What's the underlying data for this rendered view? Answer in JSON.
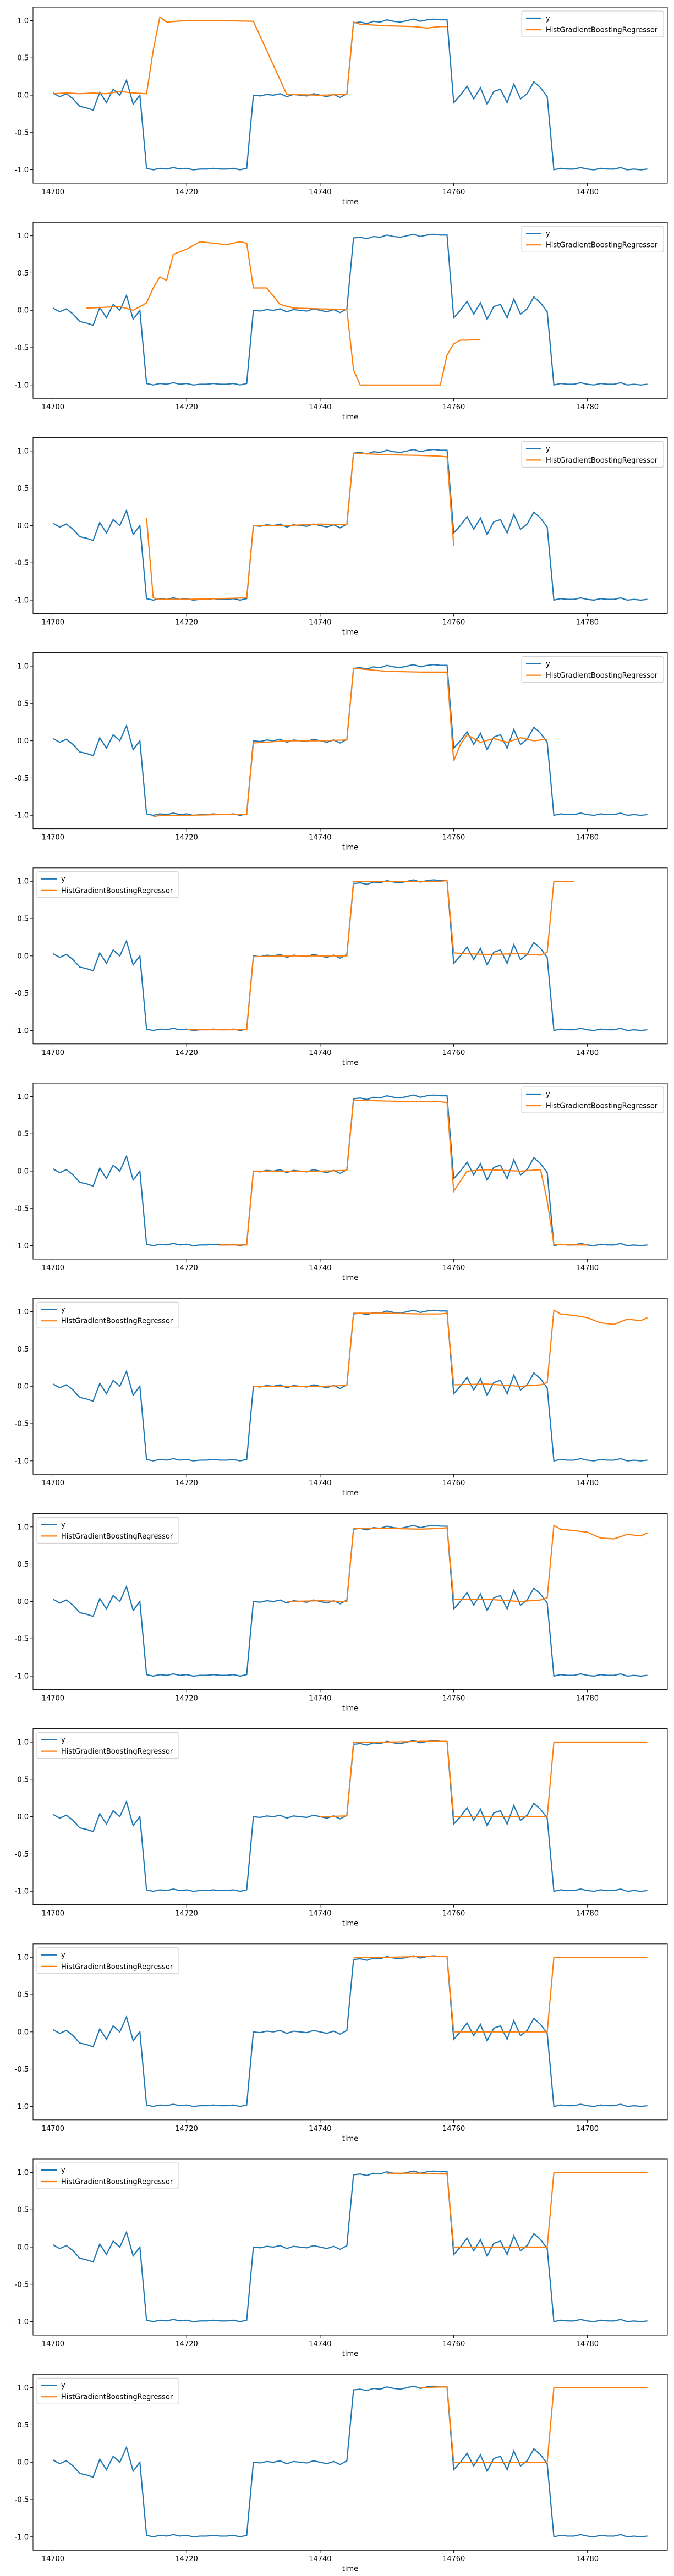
{
  "figure": {
    "xlabel": "time",
    "series_names": [
      "y",
      "HistGradientBoostingRegressor"
    ],
    "colors": {
      "y": "#1f77b4",
      "pred": "#ff7f0e"
    }
  },
  "chart_data": [
    {
      "type": "line",
      "xlabel": "time",
      "xlim": [
        14697,
        14792
      ],
      "ylim": [
        -1.18,
        1.18
      ],
      "xticks": [
        14700,
        14720,
        14740,
        14760,
        14780
      ],
      "yticks": [
        -1.0,
        -0.5,
        0.0,
        0.5,
        1.0
      ],
      "legend": "top-right",
      "series": [
        {
          "name": "y",
          "color": "#1f77b4"
        },
        {
          "name": "HistGradientBoostingRegressor",
          "color": "#ff7f0e",
          "x": [
            14700,
            14702,
            14704,
            14706,
            14708,
            14710,
            14712,
            14714,
            14715,
            14716,
            14717,
            14720,
            14725,
            14730,
            14735,
            14740,
            14744,
            14745,
            14746,
            14750,
            14754,
            14756,
            14758,
            14759
          ],
          "y": [
            0.02,
            0.03,
            0.02,
            0.03,
            0.02,
            0.05,
            0.03,
            0.02,
            0.6,
            1.05,
            0.98,
            1.0,
            1.0,
            0.99,
            0.01,
            0.0,
            0.01,
            0.98,
            0.95,
            0.93,
            0.92,
            0.9,
            0.92,
            0.92
          ]
        }
      ]
    },
    {
      "type": "line",
      "xlabel": "time",
      "xlim": [
        14697,
        14792
      ],
      "ylim": [
        -1.18,
        1.18
      ],
      "xticks": [
        14700,
        14720,
        14740,
        14760,
        14780
      ],
      "yticks": [
        -1.0,
        -0.5,
        0.0,
        0.5,
        1.0
      ],
      "legend": "top-right",
      "series": [
        {
          "name": "y",
          "color": "#1f77b4"
        },
        {
          "name": "HistGradientBoostingRegressor",
          "color": "#ff7f0e",
          "x": [
            14705,
            14710,
            14712,
            14714,
            14715,
            14716,
            14717,
            14718,
            14720,
            14722,
            14724,
            14726,
            14728,
            14729,
            14730,
            14731,
            14732,
            14734,
            14736,
            14740,
            14744,
            14745,
            14746,
            14748,
            14750,
            14755,
            14758,
            14759,
            14760,
            14761,
            14762,
            14764
          ],
          "y": [
            0.03,
            0.05,
            0.0,
            0.1,
            0.3,
            0.45,
            0.4,
            0.75,
            0.82,
            0.92,
            0.9,
            0.88,
            0.92,
            0.9,
            0.3,
            0.3,
            0.3,
            0.08,
            0.03,
            0.02,
            0.01,
            -0.8,
            -1.0,
            -1.0,
            -1.0,
            -1.0,
            -1.0,
            -0.6,
            -0.45,
            -0.4,
            -0.4,
            -0.39
          ]
        }
      ]
    },
    {
      "type": "line",
      "xlabel": "time",
      "xlim": [
        14697,
        14792
      ],
      "ylim": [
        -1.18,
        1.18
      ],
      "xticks": [
        14700,
        14720,
        14740,
        14760,
        14780
      ],
      "yticks": [
        -1.0,
        -0.5,
        0.0,
        0.5,
        1.0
      ],
      "legend": "top-right",
      "series": [
        {
          "name": "y",
          "color": "#1f77b4"
        },
        {
          "name": "HistGradientBoostingRegressor",
          "color": "#ff7f0e",
          "x": [
            14714,
            14715,
            14716,
            14720,
            14725,
            14729,
            14730,
            14735,
            14740,
            14744,
            14745,
            14750,
            14755,
            14758,
            14759,
            14760
          ],
          "y": [
            0.1,
            -0.97,
            -0.99,
            -0.99,
            -0.98,
            -0.97,
            0.0,
            0.0,
            0.02,
            0.01,
            0.97,
            0.95,
            0.94,
            0.93,
            0.92,
            -0.27
          ]
        }
      ]
    },
    {
      "type": "line",
      "xlabel": "time",
      "xlim": [
        14697,
        14792
      ],
      "ylim": [
        -1.18,
        1.18
      ],
      "xticks": [
        14700,
        14720,
        14740,
        14760,
        14780
      ],
      "yticks": [
        -1.0,
        -0.5,
        0.0,
        0.5,
        1.0
      ],
      "legend": "top-right",
      "series": [
        {
          "name": "y",
          "color": "#1f77b4"
        },
        {
          "name": "HistGradientBoostingRegressor",
          "color": "#ff7f0e",
          "x": [
            14715,
            14716,
            14720,
            14725,
            14729,
            14730,
            14735,
            14740,
            14744,
            14745,
            14750,
            14755,
            14758,
            14759,
            14760,
            14761,
            14762,
            14764,
            14766,
            14768,
            14770,
            14772,
            14774
          ],
          "y": [
            -1.02,
            -1.0,
            -1.0,
            -0.99,
            -0.99,
            -0.03,
            0.0,
            0.0,
            0.01,
            0.97,
            0.93,
            0.92,
            0.92,
            0.92,
            -0.27,
            -0.05,
            0.08,
            -0.02,
            0.03,
            -0.02,
            0.04,
            0.0,
            0.02
          ]
        }
      ]
    },
    {
      "type": "line",
      "xlabel": "time",
      "xlim": [
        14697,
        14792
      ],
      "ylim": [
        -1.18,
        1.18
      ],
      "xticks": [
        14700,
        14720,
        14740,
        14760,
        14780
      ],
      "yticks": [
        -1.0,
        -0.5,
        0.0,
        0.5,
        1.0
      ],
      "legend": "top-left",
      "series": [
        {
          "name": "y",
          "color": "#1f77b4"
        },
        {
          "name": "HistGradientBoostingRegressor",
          "color": "#ff7f0e",
          "x": [
            14720,
            14725,
            14729,
            14730,
            14735,
            14740,
            14744,
            14745,
            14750,
            14755,
            14758,
            14759,
            14760,
            14762,
            14765,
            14770,
            14773,
            14774,
            14775,
            14776,
            14778
          ],
          "y": [
            -0.99,
            -0.99,
            -0.99,
            -0.01,
            0.0,
            0.0,
            0.0,
            1.0,
            1.0,
            1.0,
            1.0,
            1.01,
            0.04,
            0.03,
            0.02,
            0.03,
            0.01,
            0.05,
            1.0,
            1.0,
            1.0
          ]
        }
      ]
    },
    {
      "type": "line",
      "xlabel": "time",
      "xlim": [
        14697,
        14792
      ],
      "ylim": [
        -1.18,
        1.18
      ],
      "xticks": [
        14700,
        14720,
        14740,
        14760,
        14780
      ],
      "yticks": [
        -1.0,
        -0.5,
        0.0,
        0.5,
        1.0
      ],
      "legend": "top-right",
      "series": [
        {
          "name": "y",
          "color": "#1f77b4"
        },
        {
          "name": "HistGradientBoostingRegressor",
          "color": "#ff7f0e",
          "x": [
            14725,
            14729,
            14730,
            14735,
            14740,
            14744,
            14745,
            14750,
            14755,
            14758,
            14759,
            14760,
            14762,
            14765,
            14770,
            14773,
            14774,
            14775,
            14778,
            14780
          ],
          "y": [
            -0.99,
            -0.99,
            0.0,
            0.0,
            0.0,
            0.01,
            0.95,
            0.94,
            0.93,
            0.93,
            0.92,
            -0.27,
            0.0,
            0.02,
            0.0,
            0.02,
            -0.4,
            -0.98,
            -0.99,
            -0.99
          ]
        }
      ]
    },
    {
      "type": "line",
      "xlabel": "time",
      "xlim": [
        14697,
        14792
      ],
      "ylim": [
        -1.18,
        1.18
      ],
      "xticks": [
        14700,
        14720,
        14740,
        14760,
        14780
      ],
      "yticks": [
        -1.0,
        -0.5,
        0.0,
        0.5,
        1.0
      ],
      "legend": "top-left",
      "series": [
        {
          "name": "y",
          "color": "#1f77b4"
        },
        {
          "name": "HistGradientBoostingRegressor",
          "color": "#ff7f0e",
          "x": [
            14730,
            14735,
            14740,
            14744,
            14745,
            14750,
            14755,
            14758,
            14759,
            14760,
            14765,
            14770,
            14773,
            14774,
            14775,
            14776,
            14778,
            14780,
            14782,
            14784,
            14786,
            14788,
            14789
          ],
          "y": [
            0.0,
            0.0,
            0.0,
            0.01,
            0.98,
            0.98,
            0.97,
            0.97,
            0.98,
            0.02,
            0.03,
            0.0,
            0.02,
            0.05,
            1.02,
            0.97,
            0.95,
            0.92,
            0.85,
            0.83,
            0.9,
            0.88,
            0.92
          ]
        }
      ]
    },
    {
      "type": "line",
      "xlabel": "time",
      "xlim": [
        14697,
        14792
      ],
      "ylim": [
        -1.18,
        1.18
      ],
      "xticks": [
        14700,
        14720,
        14740,
        14760,
        14780
      ],
      "yticks": [
        -1.0,
        -0.5,
        0.0,
        0.5,
        1.0
      ],
      "legend": "top-left",
      "series": [
        {
          "name": "y",
          "color": "#1f77b4"
        },
        {
          "name": "HistGradientBoostingRegressor",
          "color": "#ff7f0e",
          "x": [
            14735,
            14740,
            14744,
            14745,
            14750,
            14755,
            14758,
            14759,
            14760,
            14765,
            14770,
            14773,
            14774,
            14775,
            14776,
            14778,
            14780,
            14782,
            14784,
            14786,
            14788,
            14789
          ],
          "y": [
            0.0,
            0.01,
            0.0,
            0.98,
            0.98,
            0.97,
            0.98,
            0.99,
            0.03,
            0.03,
            0.0,
            0.02,
            0.05,
            1.02,
            0.97,
            0.95,
            0.93,
            0.85,
            0.84,
            0.9,
            0.88,
            0.92
          ]
        }
      ]
    },
    {
      "type": "line",
      "xlabel": "time",
      "xlim": [
        14697,
        14792
      ],
      "ylim": [
        -1.18,
        1.18
      ],
      "xticks": [
        14700,
        14720,
        14740,
        14760,
        14780
      ],
      "yticks": [
        -1.0,
        -0.5,
        0.0,
        0.5,
        1.0
      ],
      "legend": "top-left",
      "series": [
        {
          "name": "y",
          "color": "#1f77b4"
        },
        {
          "name": "HistGradientBoostingRegressor",
          "color": "#ff7f0e",
          "x": [
            14740,
            14744,
            14745,
            14750,
            14755,
            14758,
            14759,
            14760,
            14765,
            14770,
            14774,
            14775,
            14780,
            14785,
            14789
          ],
          "y": [
            0.0,
            0.01,
            1.0,
            1.0,
            1.01,
            1.01,
            1.01,
            0.0,
            0.0,
            0.0,
            0.0,
            1.0,
            1.0,
            1.0,
            1.0
          ]
        }
      ]
    },
    {
      "type": "line",
      "xlabel": "time",
      "xlim": [
        14697,
        14792
      ],
      "ylim": [
        -1.18,
        1.18
      ],
      "xticks": [
        14700,
        14720,
        14740,
        14760,
        14780
      ],
      "yticks": [
        -1.0,
        -0.5,
        0.0,
        0.5,
        1.0
      ],
      "legend": "top-left",
      "series": [
        {
          "name": "y",
          "color": "#1f77b4"
        },
        {
          "name": "HistGradientBoostingRegressor",
          "color": "#ff7f0e",
          "x": [
            14745,
            14750,
            14755,
            14758,
            14759,
            14760,
            14765,
            14770,
            14774,
            14775,
            14780,
            14785,
            14789
          ],
          "y": [
            1.0,
            1.0,
            1.01,
            1.01,
            1.01,
            0.0,
            0.0,
            0.0,
            0.0,
            1.0,
            1.0,
            1.0,
            1.0
          ]
        }
      ]
    },
    {
      "type": "line",
      "xlabel": "time",
      "xlim": [
        14697,
        14792
      ],
      "ylim": [
        -1.18,
        1.18
      ],
      "xticks": [
        14700,
        14720,
        14740,
        14760,
        14780
      ],
      "yticks": [
        -1.0,
        -0.5,
        0.0,
        0.5,
        1.0
      ],
      "legend": "top-left",
      "series": [
        {
          "name": "y",
          "color": "#1f77b4"
        },
        {
          "name": "HistGradientBoostingRegressor",
          "color": "#ff7f0e",
          "x": [
            14750,
            14755,
            14758,
            14759,
            14760,
            14765,
            14770,
            14774,
            14775,
            14780,
            14785,
            14789
          ],
          "y": [
            0.99,
            0.99,
            0.98,
            0.98,
            0.0,
            0.0,
            0.0,
            0.0,
            1.0,
            1.0,
            1.0,
            1.0
          ]
        }
      ]
    },
    {
      "type": "line",
      "xlabel": "time",
      "xlim": [
        14697,
        14792
      ],
      "ylim": [
        -1.18,
        1.18
      ],
      "xticks": [
        14700,
        14720,
        14740,
        14760,
        14780
      ],
      "yticks": [
        -1.0,
        -0.5,
        0.0,
        0.5,
        1.0
      ],
      "legend": "top-left",
      "series": [
        {
          "name": "y",
          "color": "#1f77b4"
        },
        {
          "name": "HistGradientBoostingRegressor",
          "color": "#ff7f0e",
          "x": [
            14755,
            14758,
            14759,
            14760,
            14765,
            14770,
            14774,
            14775,
            14780,
            14785,
            14789
          ],
          "y": [
            1.0,
            1.01,
            1.01,
            0.0,
            0.0,
            0.0,
            0.0,
            1.0,
            1.0,
            1.0,
            1.0
          ]
        }
      ]
    }
  ],
  "actual_series": {
    "name": "y",
    "x": [
      14700,
      14701,
      14702,
      14703,
      14704,
      14705,
      14706,
      14707,
      14708,
      14709,
      14710,
      14711,
      14712,
      14713,
      14714,
      14715,
      14716,
      14717,
      14718,
      14719,
      14720,
      14721,
      14722,
      14723,
      14724,
      14725,
      14726,
      14727,
      14728,
      14729,
      14730,
      14731,
      14732,
      14733,
      14734,
      14735,
      14736,
      14737,
      14738,
      14739,
      14740,
      14741,
      14742,
      14743,
      14744,
      14745,
      14746,
      14747,
      14748,
      14749,
      14750,
      14751,
      14752,
      14753,
      14754,
      14755,
      14756,
      14757,
      14758,
      14759,
      14760,
      14761,
      14762,
      14763,
      14764,
      14765,
      14766,
      14767,
      14768,
      14769,
      14770,
      14771,
      14772,
      14773,
      14774,
      14775,
      14776,
      14777,
      14778,
      14779,
      14780,
      14781,
      14782,
      14783,
      14784,
      14785,
      14786,
      14787,
      14788,
      14789
    ],
    "y": [
      0.03,
      -0.02,
      0.02,
      -0.05,
      -0.15,
      -0.17,
      -0.2,
      0.04,
      -0.1,
      0.08,
      0.0,
      0.2,
      -0.12,
      0.0,
      -0.98,
      -1.0,
      -0.98,
      -0.99,
      -0.97,
      -0.99,
      -0.98,
      -1.0,
      -0.99,
      -0.99,
      -0.98,
      -0.99,
      -0.99,
      -0.98,
      -1.0,
      -0.98,
      0.0,
      -0.01,
      0.01,
      0.0,
      0.02,
      -0.02,
      0.01,
      0.0,
      -0.01,
      0.02,
      0.0,
      -0.02,
      0.01,
      -0.03,
      0.02,
      0.97,
      0.98,
      0.96,
      0.99,
      0.98,
      1.01,
      0.99,
      0.98,
      1.0,
      1.02,
      0.99,
      1.01,
      1.02,
      1.01,
      1.01,
      -0.1,
      0.0,
      0.12,
      -0.05,
      0.1,
      -0.12,
      0.05,
      0.08,
      -0.1,
      0.15,
      -0.05,
      0.02,
      0.18,
      0.1,
      -0.02,
      -1.0,
      -0.98,
      -0.99,
      -0.99,
      -0.97,
      -0.99,
      -1.0,
      -0.98,
      -0.99,
      -0.99,
      -0.97,
      -1.0,
      -0.99,
      -1.0,
      -0.99
    ]
  }
}
